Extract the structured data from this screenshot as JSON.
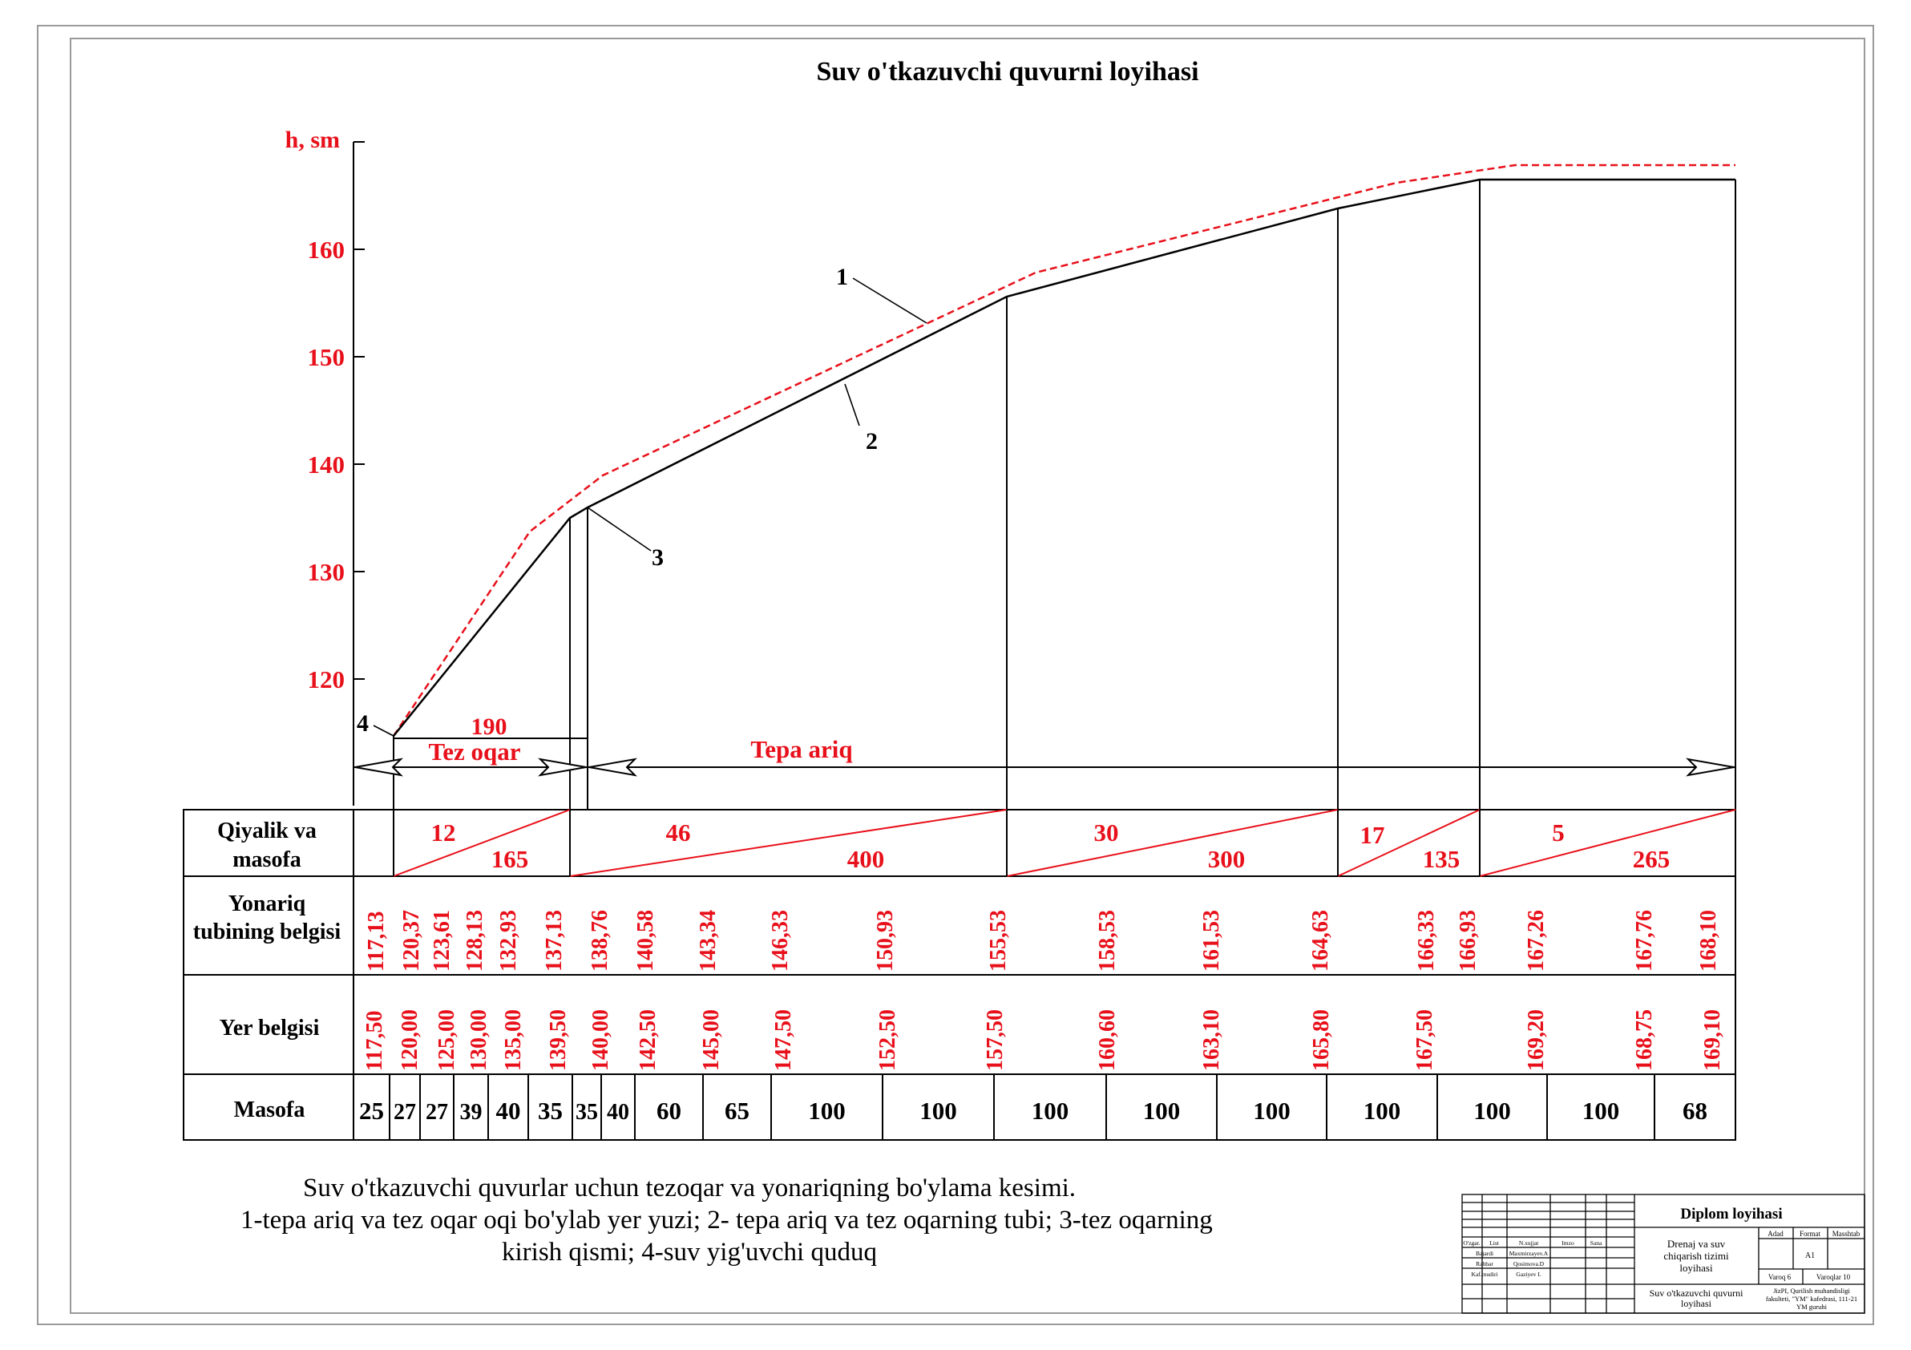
{
  "title": "Suv o'tkazuvchi quvurni loyihasi",
  "axis": {
    "label": "h, sm",
    "ticks": [
      120,
      130,
      140,
      150,
      160
    ],
    "ylim": [
      110,
      170
    ]
  },
  "curve_labels": [
    "1",
    "2",
    "3",
    "4"
  ],
  "sections": {
    "tez_oqar_length": "190",
    "tez_oqar_label": "Tez oqar",
    "tepa_ariq_label": "Tepa ariq"
  },
  "table": {
    "row_headers": {
      "slope": [
        "Qiyalik va",
        "masofa"
      ],
      "canal": [
        "Yonariq",
        "tubining belgisi"
      ],
      "ground": [
        "Yer belgisi"
      ],
      "distance": [
        "Masofa"
      ]
    },
    "slopes": [
      {
        "slope": "12",
        "length": "165"
      },
      {
        "slope": "46",
        "length": "400"
      },
      {
        "slope": "30",
        "length": "300"
      },
      {
        "slope": "17",
        "length": "135"
      },
      {
        "slope": "5",
        "length": "265"
      }
    ],
    "canal_marks": [
      "117,13",
      "120,37",
      "123,61",
      "128,13",
      "132,93",
      "137,13",
      "138,76",
      "140,58",
      "143,34",
      "146,33",
      "150,93",
      "155,53",
      "158,53",
      "161,53",
      "164,63",
      "166,33",
      "166,93",
      "167,26",
      "167,76",
      "168,10"
    ],
    "ground_marks": [
      "117,50",
      "120,00",
      "125,00",
      "130,00",
      "135,00",
      "139,50",
      "140,00",
      "142,50",
      "145,00",
      "147,50",
      "152,50",
      "157,50",
      "160,60",
      "163,10",
      "165,80",
      "167,50",
      "169,20",
      "168,75",
      "169,10"
    ],
    "distances": [
      "25",
      "27",
      "27",
      "39",
      "40",
      "35",
      "35",
      "40",
      "60",
      "65",
      "100",
      "100",
      "100",
      "100",
      "100",
      "100",
      "100",
      "100",
      "68"
    ]
  },
  "caption": [
    "Suv o'tkazuvchi quvurlar uchun tezoqar va yonariqning bo'ylama kesimi.",
    "1-tepa ariq va tez oqar oqi bo'ylab yer yuzi; 2- tepa ariq va tez oqarning tubi; 3-tez oqarning",
    "kirish qismi; 4-suv yig'uvchi quduq"
  ],
  "stamp": {
    "title": "Diplom loyihasi",
    "roles": [
      "O'zgar.",
      "List",
      "N.xujjat",
      "Imzo",
      "Sana"
    ],
    "names": [
      {
        "role": "Bajardi",
        "name": "Maxmirzayev.A"
      },
      {
        "role": "Rahbar",
        "name": "Qosimova.D"
      },
      {
        "role": "Kaf.mudiri",
        "name": "Gaziyev I."
      }
    ],
    "project": "Drenaj va suv chiqarish tizimi loyihasi",
    "headers": [
      "Adad",
      "Format",
      "Masshtab"
    ],
    "format": "A1",
    "sheet": "Varoq 6",
    "sheets": "Varoqlar 10",
    "drawing": "Suv o'tkazuvchi quvurni loyihasi",
    "org": "JizPI, Qurilish muhandisligi fakulteti, \"YM\" kafedrasi, 111-21 YM guruhi"
  },
  "colors": {
    "red": "#e8101a",
    "black": "#000000"
  }
}
